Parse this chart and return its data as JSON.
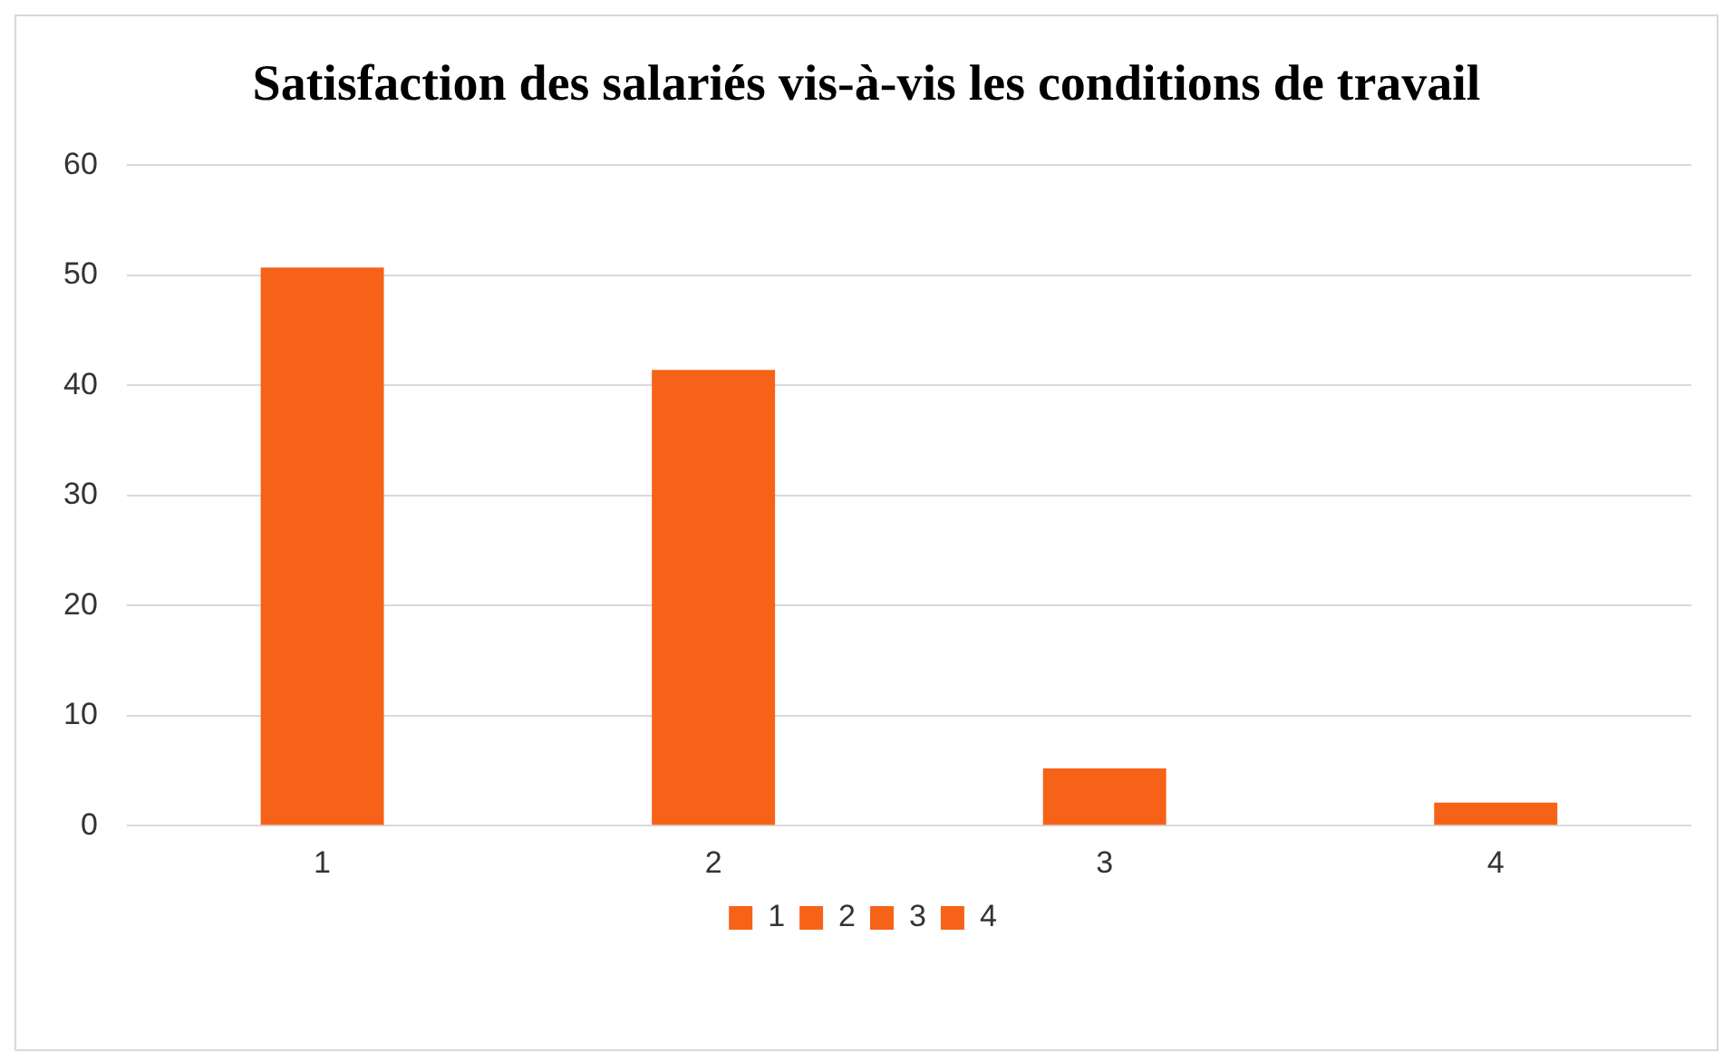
{
  "chart_data": {
    "type": "bar",
    "title": "Satisfaction des salariés vis-à-vis les conditions de travail",
    "categories": [
      "1",
      "2",
      "3",
      "4"
    ],
    "series": [
      {
        "name": "1",
        "color": "#f66318",
        "values": [
          50.7,
          null,
          null,
          null
        ]
      },
      {
        "name": "2",
        "color": "#f66318",
        "values": [
          null,
          41.4,
          null,
          null
        ]
      },
      {
        "name": "3",
        "color": "#f66318",
        "values": [
          null,
          null,
          5.2,
          null
        ]
      },
      {
        "name": "4",
        "color": "#f66318",
        "values": [
          null,
          null,
          null,
          2.1
        ]
      }
    ],
    "ylim": [
      0,
      60
    ],
    "yticks": [
      0,
      10,
      20,
      30,
      40,
      50,
      60
    ],
    "grid": "y",
    "legend": "bottom"
  }
}
